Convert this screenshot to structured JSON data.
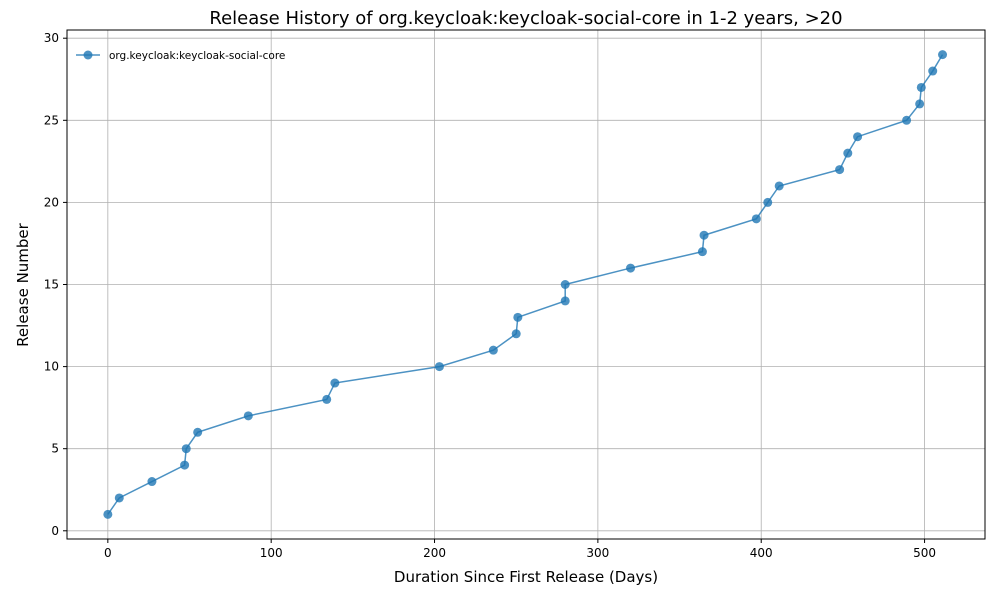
{
  "chart_data": {
    "type": "line",
    "title": "Release History of org.keycloak:keycloak-social-core in 1-2 years, >20",
    "xlabel": "Duration Since First Release (Days)",
    "ylabel": "Release Number",
    "xlim": [
      -25,
      537
    ],
    "ylim": [
      -0.5,
      30.5
    ],
    "xticks": [
      0,
      100,
      200,
      300,
      400,
      500
    ],
    "yticks": [
      0,
      5,
      10,
      15,
      20,
      25,
      30
    ],
    "grid": true,
    "legend_position": "top-left",
    "series": [
      {
        "name": "org.keycloak:keycloak-social-core",
        "color": "#1f77b4",
        "marker": "circle",
        "x": [
          0,
          7,
          27,
          47,
          48,
          55,
          86,
          134,
          139,
          203,
          236,
          250,
          251,
          280,
          280,
          320,
          364,
          365,
          397,
          404,
          411,
          448,
          453,
          459,
          489,
          497,
          498,
          505,
          511
        ],
        "y": [
          1,
          2,
          3,
          4,
          5,
          6,
          7,
          8,
          9,
          10,
          11,
          12,
          13,
          14,
          15,
          16,
          17,
          18,
          19,
          20,
          21,
          22,
          23,
          24,
          25,
          26,
          27,
          28,
          29
        ]
      }
    ]
  }
}
